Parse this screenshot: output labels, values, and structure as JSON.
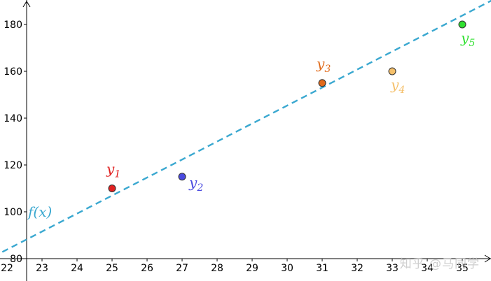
{
  "chart_data": {
    "type": "scatter",
    "title": "",
    "xlabel": "",
    "ylabel": "",
    "xlim": [
      22,
      35.8
    ],
    "ylim": [
      80,
      190
    ],
    "x_ticks": [
      "22",
      "23",
      "24",
      "25",
      "26",
      "27",
      "28",
      "29",
      "30",
      "31",
      "32",
      "33",
      "34",
      "35"
    ],
    "y_ticks": [
      "80",
      "100",
      "120",
      "140",
      "160",
      "180"
    ],
    "grid": false,
    "points": [
      {
        "name": "y",
        "sub": "1",
        "x": 25,
        "y": 110,
        "color": "#e02020",
        "label_pos": "above"
      },
      {
        "name": "y",
        "sub": "2",
        "x": 27,
        "y": 115,
        "color": "#4a4ae0",
        "label_pos": "right"
      },
      {
        "name": "y",
        "sub": "3",
        "x": 31,
        "y": 155,
        "color": "#e06a1a",
        "label_pos": "above"
      },
      {
        "name": "y",
        "sub": "4",
        "x": 33,
        "y": 160,
        "color": "#f5c06b",
        "label_pos": "below"
      },
      {
        "name": "y",
        "sub": "5",
        "x": 35,
        "y": 180,
        "color": "#30e030",
        "label_pos": "below"
      }
    ],
    "fit_line": {
      "label": "f(x)",
      "color": "#3aa8d0",
      "style": "dashed",
      "points": [
        [
          21.6,
          80.8
        ],
        [
          36.0,
          191.5
        ]
      ]
    }
  },
  "watermark": "知乎 @马同学"
}
